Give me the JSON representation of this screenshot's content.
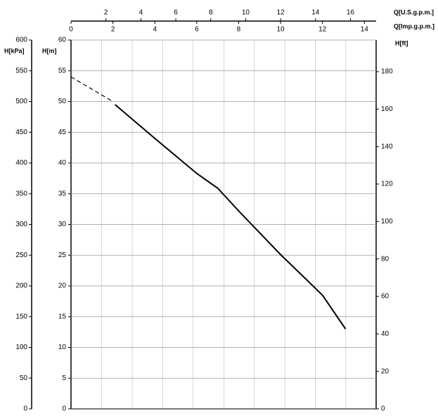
{
  "chart_data": {
    "type": "line",
    "xlabel": "Q[Imp.g.p.m.]",
    "xlim": [
      0,
      14.56
    ],
    "xticks": [
      0,
      2,
      4,
      6,
      8,
      10,
      12,
      14
    ],
    "x2label": "Q[U.S.g.p.m.]",
    "x2lim": [
      0,
      17.47
    ],
    "x2ticks": [
      2,
      4,
      6,
      8,
      10,
      12,
      14,
      16
    ],
    "ylabel": "H[m]",
    "ylim": [
      0,
      60
    ],
    "yticks": [
      0,
      5,
      10,
      15,
      20,
      25,
      30,
      35,
      40,
      45,
      50,
      55,
      60
    ],
    "y2label": "H[ft]",
    "y2lim": [
      0,
      196.85
    ],
    "y2ticks": [
      0,
      20,
      40,
      60,
      80,
      100,
      120,
      140,
      160,
      180
    ],
    "y3label": "H[kPa]",
    "y3lim": [
      0,
      600
    ],
    "y3ticks": [
      0,
      50,
      100,
      150,
      200,
      250,
      300,
      350,
      400,
      450,
      500,
      550,
      600
    ],
    "grid": true,
    "series": [
      {
        "color": "#000000",
        "dashed": true,
        "x": [
          0,
          1,
          2
        ],
        "values": [
          54,
          52,
          50
        ]
      },
      {
        "color": "#000000",
        "dashed": false,
        "x": [
          2.1,
          4,
          6,
          7,
          8,
          10,
          12,
          13.1
        ],
        "values": [
          49.5,
          44,
          38.3,
          35.9,
          32.2,
          25.1,
          18.5,
          13
        ]
      }
    ]
  }
}
